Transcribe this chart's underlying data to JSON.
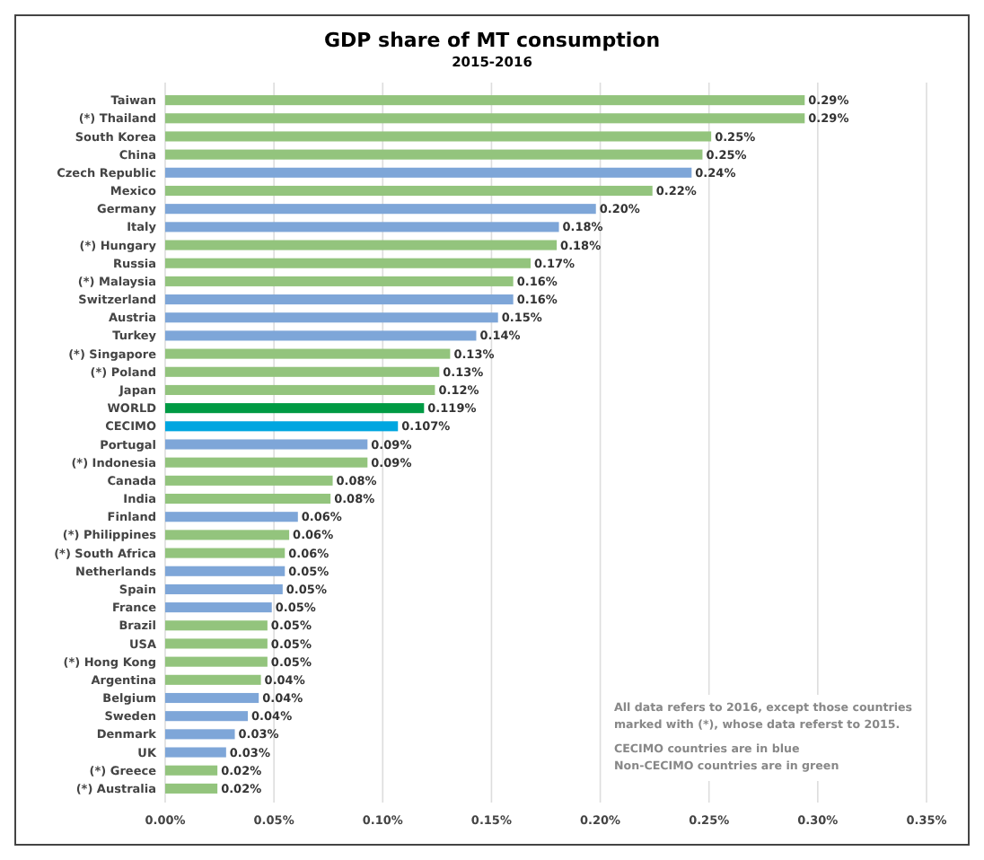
{
  "chart_data": {
    "type": "bar",
    "orientation": "horizontal",
    "title": "GDP share of MT consumption",
    "subtitle": "2015-2016",
    "categories": [
      "Taiwan",
      "(*) Thailand",
      "South Korea",
      "China",
      "Czech Republic",
      "Mexico",
      "Germany",
      "Italy",
      "(*) Hungary",
      "Russia",
      "(*) Malaysia",
      "Switzerland",
      "Austria",
      "Turkey",
      "(*) Singapore",
      "(*) Poland",
      "Japan",
      "WORLD",
      "CECIMO",
      "Portugal",
      "(*) Indonesia",
      "Canada",
      "India",
      "Finland",
      "(*) Philippines",
      "(*) South Africa",
      "Netherlands",
      "Spain",
      "France",
      "Brazil",
      "USA",
      "(*) Hong Kong",
      "Argentina",
      "Belgium",
      "Sweden",
      "Denmark",
      "UK",
      "(*) Greece",
      "(*) Australia"
    ],
    "values": [
      0.294,
      0.294,
      0.251,
      0.247,
      0.242,
      0.224,
      0.198,
      0.181,
      0.18,
      0.168,
      0.16,
      0.16,
      0.153,
      0.143,
      0.131,
      0.126,
      0.124,
      0.119,
      0.107,
      0.093,
      0.093,
      0.077,
      0.076,
      0.061,
      0.057,
      0.055,
      0.055,
      0.054,
      0.049,
      0.047,
      0.047,
      0.047,
      0.044,
      0.043,
      0.038,
      0.032,
      0.028,
      0.024,
      0.024
    ],
    "value_labels": [
      "0.29%",
      "0.29%",
      "0.25%",
      "0.25%",
      "0.24%",
      "0.22%",
      "0.20%",
      "0.18%",
      "0.18%",
      "0.17%",
      "0.16%",
      "0.16%",
      "0.15%",
      "0.14%",
      "0.13%",
      "0.13%",
      "0.12%",
      "0.119%",
      "0.107%",
      "0.09%",
      "0.09%",
      "0.08%",
      "0.08%",
      "0.06%",
      "0.06%",
      "0.06%",
      "0.05%",
      "0.05%",
      "0.05%",
      "0.05%",
      "0.05%",
      "0.05%",
      "0.04%",
      "0.04%",
      "0.04%",
      "0.03%",
      "0.03%",
      "0.02%",
      "0.02%"
    ],
    "colors": [
      "#93c47d",
      "#93c47d",
      "#93c47d",
      "#93c47d",
      "#7ea6d8",
      "#93c47d",
      "#7ea6d8",
      "#7ea6d8",
      "#93c47d",
      "#93c47d",
      "#93c47d",
      "#7ea6d8",
      "#7ea6d8",
      "#7ea6d8",
      "#93c47d",
      "#93c47d",
      "#93c47d",
      "#009a44",
      "#00a6e0",
      "#7ea6d8",
      "#93c47d",
      "#93c47d",
      "#93c47d",
      "#7ea6d8",
      "#93c47d",
      "#93c47d",
      "#7ea6d8",
      "#7ea6d8",
      "#7ea6d8",
      "#93c47d",
      "#93c47d",
      "#93c47d",
      "#93c47d",
      "#7ea6d8",
      "#7ea6d8",
      "#7ea6d8",
      "#7ea6d8",
      "#93c47d",
      "#93c47d"
    ],
    "xlim": [
      0,
      0.35
    ],
    "xticks": [
      {
        "value": 0,
        "label": "0.00%"
      },
      {
        "value": 0.05,
        "label": "0.05%"
      },
      {
        "value": 0.1,
        "label": "0.10%"
      },
      {
        "value": 0.15,
        "label": "0.15%"
      },
      {
        "value": 0.2,
        "label": "0.20%"
      },
      {
        "value": 0.25,
        "label": "0.25%"
      },
      {
        "value": 0.3,
        "label": "0.30%"
      },
      {
        "value": 0.35,
        "label": "0.35%"
      }
    ],
    "grid": "x",
    "annotations": [
      "All data refers to 2016, except those countries marked with (*), whose data referst to 2015.",
      "CECIMO countries are in blue",
      "Non-CECIMO  countries are in green"
    ]
  }
}
